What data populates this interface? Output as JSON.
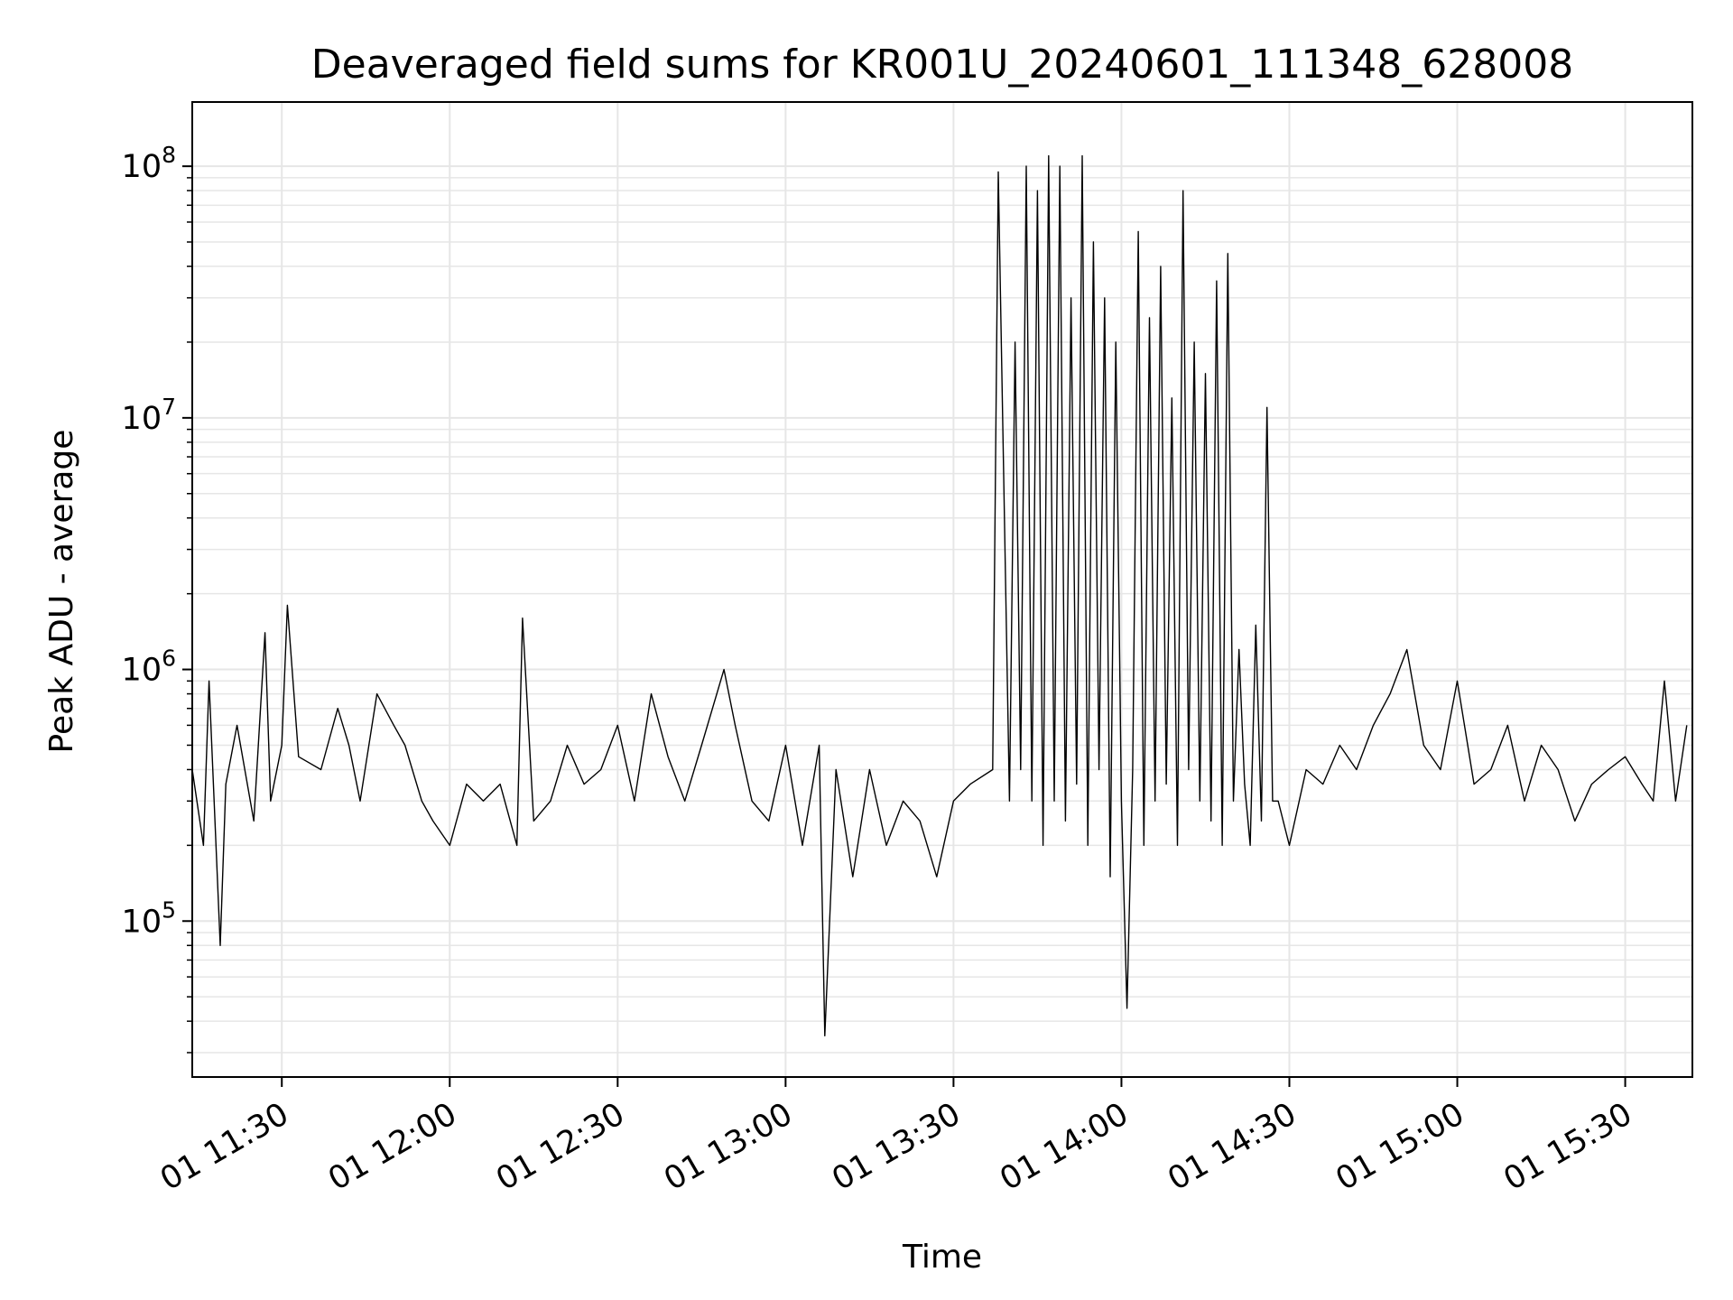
{
  "chart_data": {
    "type": "line",
    "title": "Deaveraged field sums for KR001U_20240601_111348_628008",
    "xlabel": "Time",
    "ylabel": "Peak ADU - average",
    "yscale": "log",
    "ylim": [
      24000,
      180000000
    ],
    "xlim": [
      "2024-06-01 11:14",
      "2024-06-01 15:42"
    ],
    "x_ticks": [
      {
        "t": "2024-06-01 11:30",
        "label": "01 11:30"
      },
      {
        "t": "2024-06-01 12:00",
        "label": "01 12:00"
      },
      {
        "t": "2024-06-01 12:30",
        "label": "01 12:30"
      },
      {
        "t": "2024-06-01 13:00",
        "label": "01 13:00"
      },
      {
        "t": "2024-06-01 13:30",
        "label": "01 13:30"
      },
      {
        "t": "2024-06-01 14:00",
        "label": "01 14:00"
      },
      {
        "t": "2024-06-01 14:30",
        "label": "01 14:30"
      },
      {
        "t": "2024-06-01 15:00",
        "label": "01 15:00"
      },
      {
        "t": "2024-06-01 15:30",
        "label": "01 15:30"
      }
    ],
    "y_ticks": [
      {
        "value": 100000,
        "base": "10",
        "exp": "5"
      },
      {
        "value": 1000000,
        "base": "10",
        "exp": "6"
      },
      {
        "value": 10000000,
        "base": "10",
        "exp": "7"
      },
      {
        "value": 100000000,
        "base": "10",
        "exp": "8"
      }
    ],
    "grid": true,
    "legend": "none",
    "line_color": "#000000",
    "grid_color": "#e6e6e6",
    "series": [
      {
        "x": [
          "2024-06-01 11:14",
          "2024-06-01 11:16",
          "2024-06-01 11:17",
          "2024-06-01 11:19",
          "2024-06-01 11:20",
          "2024-06-01 11:22",
          "2024-06-01 11:25",
          "2024-06-01 11:27",
          "2024-06-01 11:28",
          "2024-06-01 11:30",
          "2024-06-01 11:31",
          "2024-06-01 11:33",
          "2024-06-01 11:37",
          "2024-06-01 11:40",
          "2024-06-01 11:42",
          "2024-06-01 11:44",
          "2024-06-01 11:47",
          "2024-06-01 11:50",
          "2024-06-01 11:52",
          "2024-06-01 11:55",
          "2024-06-01 11:57",
          "2024-06-01 12:00",
          "2024-06-01 12:03",
          "2024-06-01 12:06",
          "2024-06-01 12:09",
          "2024-06-01 12:12",
          "2024-06-01 12:13",
          "2024-06-01 12:15",
          "2024-06-01 12:18",
          "2024-06-01 12:21",
          "2024-06-01 12:24",
          "2024-06-01 12:27",
          "2024-06-01 12:30",
          "2024-06-01 12:33",
          "2024-06-01 12:36",
          "2024-06-01 12:39",
          "2024-06-01 12:42",
          "2024-06-01 12:45",
          "2024-06-01 12:49",
          "2024-06-01 12:51",
          "2024-06-01 12:54",
          "2024-06-01 12:57",
          "2024-06-01 13:00",
          "2024-06-01 13:03",
          "2024-06-01 13:06",
          "2024-06-01 13:07",
          "2024-06-01 13:09",
          "2024-06-01 13:12",
          "2024-06-01 13:15",
          "2024-06-01 13:18",
          "2024-06-01 13:21",
          "2024-06-01 13:24",
          "2024-06-01 13:27",
          "2024-06-01 13:30",
          "2024-06-01 13:33",
          "2024-06-01 13:37",
          "2024-06-01 13:38",
          "2024-06-01 13:40",
          "2024-06-01 13:41",
          "2024-06-01 13:42",
          "2024-06-01 13:43",
          "2024-06-01 13:44",
          "2024-06-01 13:45",
          "2024-06-01 13:46",
          "2024-06-01 13:47",
          "2024-06-01 13:48",
          "2024-06-01 13:49",
          "2024-06-01 13:50",
          "2024-06-01 13:51",
          "2024-06-01 13:52",
          "2024-06-01 13:53",
          "2024-06-01 13:54",
          "2024-06-01 13:55",
          "2024-06-01 13:56",
          "2024-06-01 13:57",
          "2024-06-01 13:58",
          "2024-06-01 13:59",
          "2024-06-01 14:00",
          "2024-06-01 14:01",
          "2024-06-01 14:02",
          "2024-06-01 14:03",
          "2024-06-01 14:04",
          "2024-06-01 14:05",
          "2024-06-01 14:06",
          "2024-06-01 14:07",
          "2024-06-01 14:08",
          "2024-06-01 14:09",
          "2024-06-01 14:10",
          "2024-06-01 14:11",
          "2024-06-01 14:12",
          "2024-06-01 14:13",
          "2024-06-01 14:14",
          "2024-06-01 14:15",
          "2024-06-01 14:16",
          "2024-06-01 14:17",
          "2024-06-01 14:18",
          "2024-06-01 14:19",
          "2024-06-01 14:20",
          "2024-06-01 14:21",
          "2024-06-01 14:22",
          "2024-06-01 14:23",
          "2024-06-01 14:24",
          "2024-06-01 14:25",
          "2024-06-01 14:26",
          "2024-06-01 14:27",
          "2024-06-01 14:28",
          "2024-06-01 14:30",
          "2024-06-01 14:33",
          "2024-06-01 14:36",
          "2024-06-01 14:39",
          "2024-06-01 14:42",
          "2024-06-01 14:45",
          "2024-06-01 14:48",
          "2024-06-01 14:51",
          "2024-06-01 14:54",
          "2024-06-01 14:57",
          "2024-06-01 15:00",
          "2024-06-01 15:03",
          "2024-06-01 15:06",
          "2024-06-01 15:09",
          "2024-06-01 15:12",
          "2024-06-01 15:15",
          "2024-06-01 15:18",
          "2024-06-01 15:21",
          "2024-06-01 15:24",
          "2024-06-01 15:27",
          "2024-06-01 15:30",
          "2024-06-01 15:33",
          "2024-06-01 15:35",
          "2024-06-01 15:37",
          "2024-06-01 15:39",
          "2024-06-01 15:41"
        ],
        "y": [
          400000,
          200000,
          900000,
          80000,
          350000,
          600000,
          250000,
          1400000,
          300000,
          500000,
          1800000,
          450000,
          400000,
          700000,
          500000,
          300000,
          800000,
          600000,
          500000,
          300000,
          250000,
          200000,
          350000,
          300000,
          350000,
          200000,
          1600000,
          250000,
          300000,
          500000,
          350000,
          400000,
          600000,
          300000,
          800000,
          450000,
          300000,
          500000,
          1000000,
          600000,
          300000,
          250000,
          500000,
          200000,
          500000,
          35000,
          400000,
          150000,
          400000,
          200000,
          300000,
          250000,
          150000,
          300000,
          350000,
          400000,
          95000000,
          300000,
          20000000,
          400000,
          100000000,
          300000,
          80000000,
          200000,
          110000000,
          300000,
          100000000,
          250000,
          30000000,
          350000,
          110000000,
          200000,
          50000000,
          400000,
          30000000,
          150000,
          20000000,
          300000,
          45000,
          400000,
          55000000,
          200000,
          25000000,
          300000,
          40000000,
          350000,
          12000000,
          200000,
          80000000,
          400000,
          20000000,
          300000,
          15000000,
          250000,
          35000000,
          200000,
          45000000,
          300000,
          1200000,
          350000,
          200000,
          1500000,
          250000,
          11000000,
          300000,
          300000,
          200000,
          400000,
          350000,
          500000,
          400000,
          600000,
          800000,
          1200000,
          500000,
          400000,
          900000,
          350000,
          400000,
          600000,
          300000,
          500000,
          400000,
          250000,
          350000,
          400000,
          450000,
          350000,
          300000,
          900000,
          300000,
          600000
        ]
      }
    ]
  }
}
